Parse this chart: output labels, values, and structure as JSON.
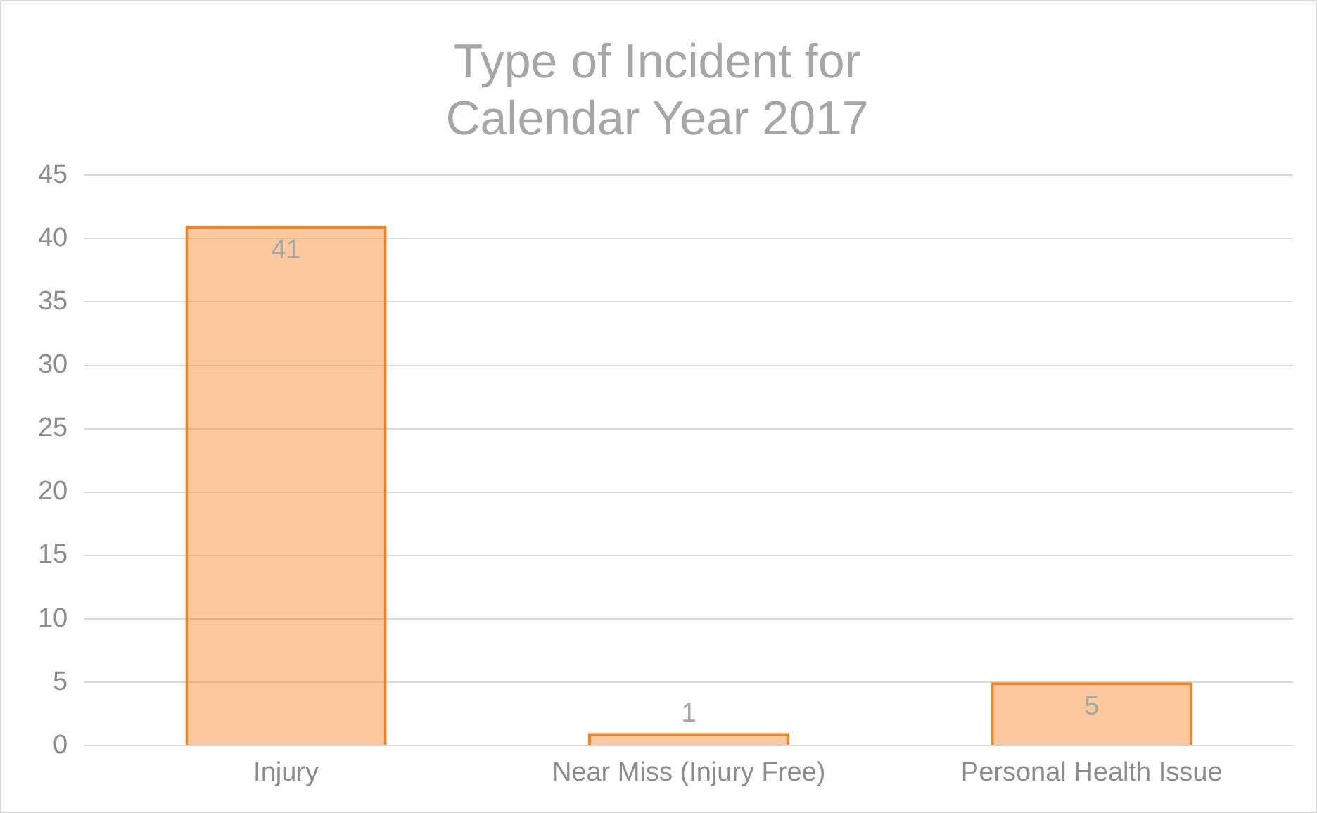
{
  "chart_data": {
    "type": "bar",
    "title": "Type of Incident for Calendar Year 2017",
    "categories": [
      "Injury",
      "Near Miss (Injury Free)",
      "Personal Health Issue"
    ],
    "values": [
      41,
      1,
      5
    ],
    "color": "#f5841f",
    "ylim": [
      0,
      45
    ],
    "yticks": [
      0,
      5,
      10,
      15,
      20,
      25,
      30,
      35,
      40,
      45
    ],
    "grid": "y",
    "data_labels": true,
    "legend": false
  }
}
